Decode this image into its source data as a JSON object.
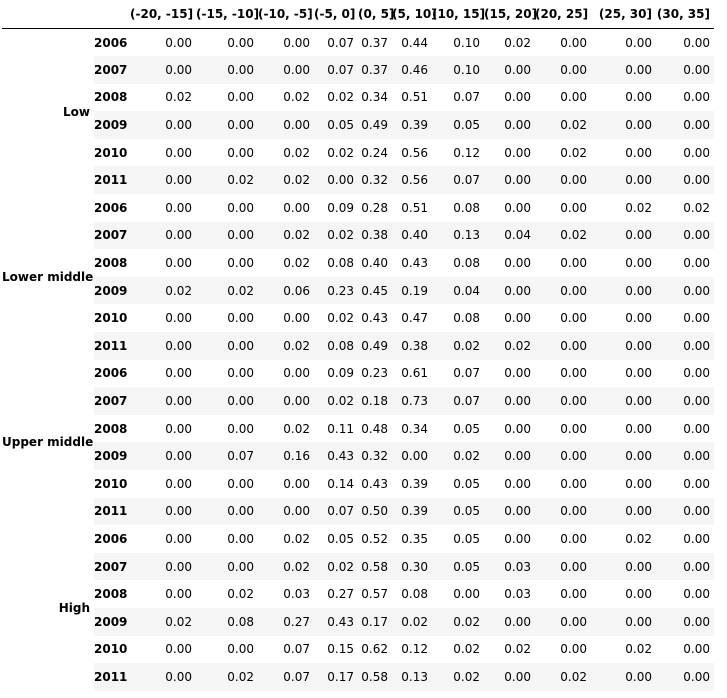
{
  "columns": [
    "(-20, -15]",
    "(-15, -10]",
    "(-10, -5]",
    "(-5, 0]",
    "(0, 5]",
    "(5, 10]",
    "(10, 15]",
    "(15, 20]",
    "(20, 25]",
    "(25, 30]",
    "(30, 35]"
  ],
  "groups": [
    {
      "label": "Low",
      "rows": [
        {
          "year": "2006",
          "values": [
            "0.00",
            "0.00",
            "0.00",
            "0.07",
            "0.37",
            "0.44",
            "0.10",
            "0.02",
            "0.00",
            "0.00",
            "0.00"
          ]
        },
        {
          "year": "2007",
          "values": [
            "0.00",
            "0.00",
            "0.00",
            "0.07",
            "0.37",
            "0.46",
            "0.10",
            "0.00",
            "0.00",
            "0.00",
            "0.00"
          ]
        },
        {
          "year": "2008",
          "values": [
            "0.02",
            "0.00",
            "0.02",
            "0.02",
            "0.34",
            "0.51",
            "0.07",
            "0.00",
            "0.00",
            "0.00",
            "0.00"
          ]
        },
        {
          "year": "2009",
          "values": [
            "0.00",
            "0.00",
            "0.00",
            "0.05",
            "0.49",
            "0.39",
            "0.05",
            "0.00",
            "0.02",
            "0.00",
            "0.00"
          ]
        },
        {
          "year": "2010",
          "values": [
            "0.00",
            "0.00",
            "0.02",
            "0.02",
            "0.24",
            "0.56",
            "0.12",
            "0.00",
            "0.02",
            "0.00",
            "0.00"
          ]
        },
        {
          "year": "2011",
          "values": [
            "0.00",
            "0.02",
            "0.02",
            "0.00",
            "0.32",
            "0.56",
            "0.07",
            "0.00",
            "0.00",
            "0.00",
            "0.00"
          ]
        }
      ]
    },
    {
      "label": "Lower middle",
      "rows": [
        {
          "year": "2006",
          "values": [
            "0.00",
            "0.00",
            "0.00",
            "0.09",
            "0.28",
            "0.51",
            "0.08",
            "0.00",
            "0.00",
            "0.02",
            "0.02"
          ]
        },
        {
          "year": "2007",
          "values": [
            "0.00",
            "0.00",
            "0.02",
            "0.02",
            "0.38",
            "0.40",
            "0.13",
            "0.04",
            "0.02",
            "0.00",
            "0.00"
          ]
        },
        {
          "year": "2008",
          "values": [
            "0.00",
            "0.00",
            "0.02",
            "0.08",
            "0.40",
            "0.43",
            "0.08",
            "0.00",
            "0.00",
            "0.00",
            "0.00"
          ]
        },
        {
          "year": "2009",
          "values": [
            "0.02",
            "0.02",
            "0.06",
            "0.23",
            "0.45",
            "0.19",
            "0.04",
            "0.00",
            "0.00",
            "0.00",
            "0.00"
          ]
        },
        {
          "year": "2010",
          "values": [
            "0.00",
            "0.00",
            "0.00",
            "0.02",
            "0.43",
            "0.47",
            "0.08",
            "0.00",
            "0.00",
            "0.00",
            "0.00"
          ]
        },
        {
          "year": "2011",
          "values": [
            "0.00",
            "0.00",
            "0.02",
            "0.08",
            "0.49",
            "0.38",
            "0.02",
            "0.02",
            "0.00",
            "0.00",
            "0.00"
          ]
        }
      ]
    },
    {
      "label": "Upper middle",
      "rows": [
        {
          "year": "2006",
          "values": [
            "0.00",
            "0.00",
            "0.00",
            "0.09",
            "0.23",
            "0.61",
            "0.07",
            "0.00",
            "0.00",
            "0.00",
            "0.00"
          ]
        },
        {
          "year": "2007",
          "values": [
            "0.00",
            "0.00",
            "0.00",
            "0.02",
            "0.18",
            "0.73",
            "0.07",
            "0.00",
            "0.00",
            "0.00",
            "0.00"
          ]
        },
        {
          "year": "2008",
          "values": [
            "0.00",
            "0.00",
            "0.02",
            "0.11",
            "0.48",
            "0.34",
            "0.05",
            "0.00",
            "0.00",
            "0.00",
            "0.00"
          ]
        },
        {
          "year": "2009",
          "values": [
            "0.00",
            "0.07",
            "0.16",
            "0.43",
            "0.32",
            "0.00",
            "0.02",
            "0.00",
            "0.00",
            "0.00",
            "0.00"
          ]
        },
        {
          "year": "2010",
          "values": [
            "0.00",
            "0.00",
            "0.00",
            "0.14",
            "0.43",
            "0.39",
            "0.05",
            "0.00",
            "0.00",
            "0.00",
            "0.00"
          ]
        },
        {
          "year": "2011",
          "values": [
            "0.00",
            "0.00",
            "0.00",
            "0.07",
            "0.50",
            "0.39",
            "0.05",
            "0.00",
            "0.00",
            "0.00",
            "0.00"
          ]
        }
      ]
    },
    {
      "label": "High",
      "rows": [
        {
          "year": "2006",
          "values": [
            "0.00",
            "0.00",
            "0.02",
            "0.05",
            "0.52",
            "0.35",
            "0.05",
            "0.00",
            "0.00",
            "0.02",
            "0.00"
          ]
        },
        {
          "year": "2007",
          "values": [
            "0.00",
            "0.00",
            "0.02",
            "0.02",
            "0.58",
            "0.30",
            "0.05",
            "0.03",
            "0.00",
            "0.00",
            "0.00"
          ]
        },
        {
          "year": "2008",
          "values": [
            "0.00",
            "0.02",
            "0.03",
            "0.27",
            "0.57",
            "0.08",
            "0.00",
            "0.03",
            "0.00",
            "0.00",
            "0.00"
          ]
        },
        {
          "year": "2009",
          "values": [
            "0.02",
            "0.08",
            "0.27",
            "0.43",
            "0.17",
            "0.02",
            "0.02",
            "0.00",
            "0.00",
            "0.00",
            "0.00"
          ]
        },
        {
          "year": "2010",
          "values": [
            "0.00",
            "0.00",
            "0.07",
            "0.15",
            "0.62",
            "0.12",
            "0.02",
            "0.02",
            "0.00",
            "0.02",
            "0.00"
          ]
        },
        {
          "year": "2011",
          "values": [
            "0.00",
            "0.02",
            "0.07",
            "0.17",
            "0.58",
            "0.13",
            "0.02",
            "0.00",
            "0.02",
            "0.00",
            "0.00"
          ]
        }
      ]
    }
  ]
}
